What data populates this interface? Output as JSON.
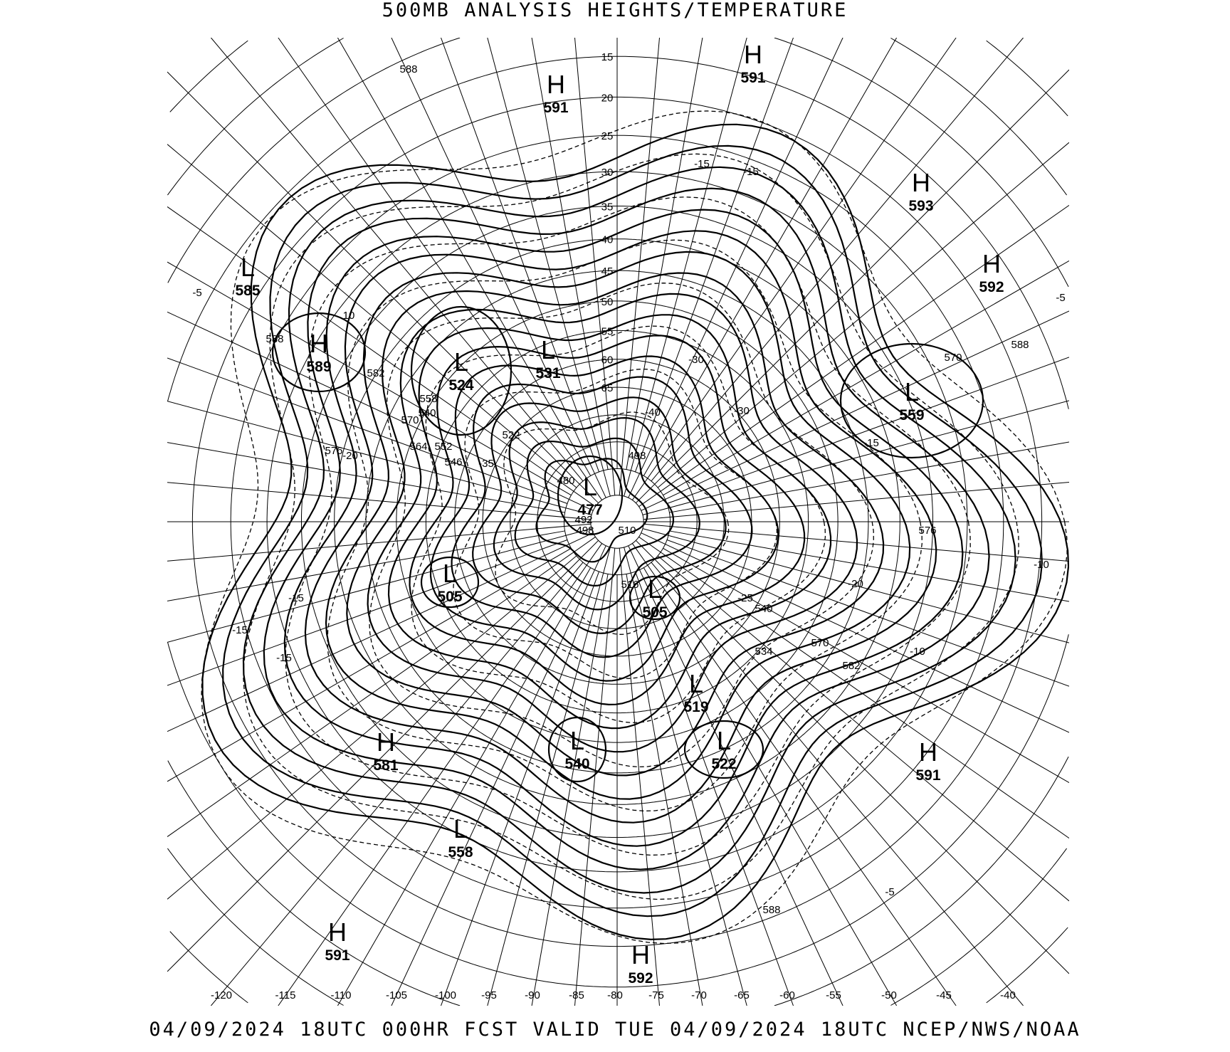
{
  "header": {
    "title": "500MB ANALYSIS  HEIGHTS/TEMPERATURE"
  },
  "footer": {
    "valid_line": "04/09/2024 18UTC 000HR FCST VALID TUE 04/09/2024 18UTC  NCEP/NWS/NOAA"
  },
  "map": {
    "projection": "north polar stereographic",
    "longitude_labels": [
      "-120",
      "-115",
      "-110",
      "-105",
      "-100",
      "-95",
      "-90",
      "-85",
      "-80",
      "-75",
      "-70",
      "-65",
      "-60",
      "-55",
      "-50",
      "-45",
      "-40"
    ],
    "latitude_labels": [
      "15",
      "20",
      "25",
      "30",
      "35",
      "40",
      "45",
      "50",
      "55",
      "60",
      "65"
    ],
    "height_contour_style": "solid, 6 dam interval",
    "temperature_contour_style": "dashed, 5 C interval",
    "colors": {
      "ink": "#000000",
      "background": "#ffffff"
    },
    "pressure_centers": [
      {
        "type": "H",
        "value": "591"
      },
      {
        "type": "H",
        "value": "591"
      },
      {
        "type": "H",
        "value": "593"
      },
      {
        "type": "H",
        "value": "592"
      },
      {
        "type": "L",
        "value": "585"
      },
      {
        "type": "H",
        "value": "589"
      },
      {
        "type": "L",
        "value": "524"
      },
      {
        "type": "L",
        "value": "531"
      },
      {
        "type": "L",
        "value": "559"
      },
      {
        "type": "L",
        "value": "477"
      },
      {
        "type": "L",
        "value": "505"
      },
      {
        "type": "L",
        "value": "505"
      },
      {
        "type": "L",
        "value": "519"
      },
      {
        "type": "H",
        "value": "581"
      },
      {
        "type": "L",
        "value": "540"
      },
      {
        "type": "L",
        "value": "522"
      },
      {
        "type": "H",
        "value": "591"
      },
      {
        "type": "L",
        "value": "558"
      },
      {
        "type": "H",
        "value": "591"
      },
      {
        "type": "H",
        "value": "592"
      }
    ],
    "height_labels": [
      "588",
      "582",
      "570",
      "576",
      "558",
      "564",
      "552",
      "546",
      "522",
      "498",
      "510",
      "498",
      "588",
      "570",
      "576",
      "582",
      "570",
      "540",
      "534",
      "588",
      "588",
      "540",
      "516",
      "492",
      "480"
    ],
    "temperature_labels": [
      "-5",
      "10",
      "-20",
      "-15",
      "-15",
      "-15",
      "-15",
      "-15",
      "-30",
      "-30",
      "-40",
      "-10",
      "-10",
      "-5",
      "-15",
      "-20",
      "-5",
      "-35",
      "-25"
    ]
  }
}
